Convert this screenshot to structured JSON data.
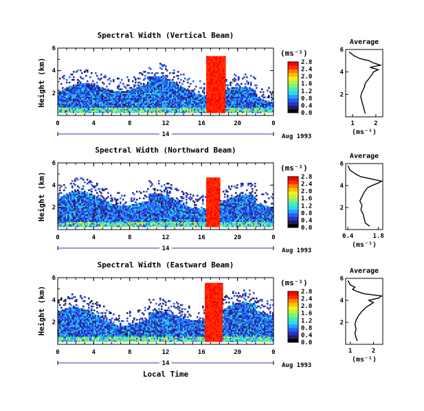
{
  "figure": {
    "x_axis_label": "Local Time",
    "date_label": "Aug 1993",
    "day_label": "14"
  },
  "colorbar_colors": [
    "#000000",
    "#202060",
    "#3030c0",
    "#2060ff",
    "#2aa0ff",
    "#30d8f0",
    "#40f0b0",
    "#80f080",
    "#c0f040",
    "#f0f020",
    "#ffc000",
    "#ff8000",
    "#ff3000",
    "#ff0000"
  ],
  "chart_data": [
    {
      "type": "heatmap",
      "title": "Spectral Width (Vertical Beam)",
      "ylabel": "Height (km)",
      "xlabel": "Local Time",
      "x_ticks": [
        "0",
        "4",
        "8",
        "12",
        "16",
        "20",
        "0"
      ],
      "x_range_hours": [
        0,
        24
      ],
      "y_ticks": [
        "2",
        "4",
        "6"
      ],
      "y_range_km": [
        0,
        6
      ],
      "colorbar": {
        "unit": "(ms⁻¹)",
        "ticks": [
          "0.0",
          "0.4",
          "0.8",
          "1.2",
          "1.6",
          "2.0",
          "2.4",
          "2.8"
        ],
        "range": [
          0,
          2.8
        ]
      },
      "features": [
        {
          "hours": [
            16.5,
            18.5
          ],
          "height_km": [
            0.3,
            5.2
          ],
          "width_ms": 2.8
        },
        {
          "hours": [
            0,
            24
          ],
          "height_km": [
            0.3,
            2.0
          ],
          "width_ms": 0.8
        }
      ],
      "average_profile": {
        "title": "Average",
        "xlabel": "(ms⁻¹)",
        "x_ticks": [
          "1",
          "2"
        ],
        "x_range": [
          0.7,
          2.3
        ],
        "y_ticks": [
          "2",
          "4",
          "6"
        ],
        "heights_km": [
          0.3,
          0.6,
          1.0,
          1.4,
          1.8,
          2.2,
          2.6,
          3.0,
          3.4,
          3.8,
          4.0,
          4.2,
          4.4,
          4.6,
          4.8,
          5.0,
          5.2,
          5.4,
          5.6,
          5.8
        ],
        "values": [
          1.55,
          1.5,
          1.45,
          1.4,
          1.35,
          1.4,
          1.5,
          1.55,
          1.7,
          1.85,
          1.9,
          2.1,
          1.75,
          2.2,
          1.9,
          1.7,
          1.3,
          1.1,
          0.95,
          0.85
        ]
      }
    },
    {
      "type": "heatmap",
      "title": "Spectral Width (Northward Beam)",
      "ylabel": "Height (km)",
      "xlabel": "Local Time",
      "x_ticks": [
        "0",
        "4",
        "8",
        "12",
        "16",
        "20",
        "0"
      ],
      "x_range_hours": [
        0,
        24
      ],
      "y_ticks": [
        "2",
        "4",
        "6"
      ],
      "y_range_km": [
        0,
        6
      ],
      "colorbar": {
        "unit": "(ms⁻¹)",
        "ticks": [
          "0.0",
          "0.4",
          "0.8",
          "1.2",
          "1.6",
          "2.0",
          "2.4",
          "2.8"
        ],
        "range": [
          0,
          2.8
        ]
      },
      "features": [
        {
          "hours": [
            16.5,
            18.0
          ],
          "height_km": [
            0.3,
            4.6
          ],
          "width_ms": 2.8
        },
        {
          "hours": [
            0,
            24
          ],
          "height_km": [
            0.3,
            2.3
          ],
          "width_ms": 0.8
        }
      ],
      "average_profile": {
        "title": "Average",
        "xlabel": "(ms⁻¹)",
        "x_ticks": [
          "0.4",
          "1.8"
        ],
        "x_range": [
          0.3,
          2.0
        ],
        "y_ticks": [
          "2",
          "4",
          "6"
        ],
        "heights_km": [
          0.3,
          0.6,
          1.0,
          1.4,
          1.8,
          2.2,
          2.6,
          3.0,
          3.4,
          3.8,
          4.0,
          4.2,
          4.4,
          4.6,
          4.8,
          5.0,
          5.2,
          5.4,
          5.6,
          5.8
        ],
        "values": [
          1.4,
          1.2,
          1.15,
          1.1,
          1.0,
          1.05,
          0.95,
          1.05,
          1.15,
          1.3,
          1.5,
          1.75,
          1.95,
          1.5,
          1.0,
          0.8,
          0.65,
          0.5,
          0.45,
          0.4
        ]
      }
    },
    {
      "type": "heatmap",
      "title": "Spectral Width (Eastward Beam)",
      "ylabel": "Height (km)",
      "xlabel": "Local Time",
      "x_ticks": [
        "0",
        "4",
        "8",
        "12",
        "16",
        "20",
        "0"
      ],
      "x_range_hours": [
        0,
        24
      ],
      "y_ticks": [
        "2",
        "4",
        "6"
      ],
      "y_range_km": [
        0,
        6
      ],
      "colorbar": {
        "unit": "(ms⁻¹)",
        "ticks": [
          "0.0",
          "0.4",
          "0.8",
          "1.2",
          "1.6",
          "2.0",
          "2.4",
          "2.8"
        ],
        "range": [
          0,
          2.8
        ]
      },
      "features": [
        {
          "hours": [
            16.3,
            18.3
          ],
          "height_km": [
            0.3,
            5.5
          ],
          "width_ms": 2.8
        },
        {
          "hours": [
            0,
            24
          ],
          "height_km": [
            0.3,
            2.4
          ],
          "width_ms": 0.8
        }
      ],
      "average_profile": {
        "title": "Average",
        "xlabel": "(ms⁻¹)",
        "x_ticks": [
          "1",
          "2"
        ],
        "x_range": [
          0.8,
          2.4
        ],
        "y_ticks": [
          "2",
          "4",
          "6"
        ],
        "heights_km": [
          0.3,
          0.6,
          1.0,
          1.4,
          1.8,
          2.2,
          2.6,
          3.0,
          3.4,
          3.8,
          4.0,
          4.2,
          4.4,
          4.6,
          4.8,
          5.0,
          5.2,
          5.4,
          5.6,
          5.8
        ],
        "values": [
          1.3,
          1.25,
          1.2,
          1.25,
          1.2,
          1.25,
          1.35,
          1.5,
          1.7,
          2.0,
          1.8,
          2.2,
          2.35,
          1.6,
          1.3,
          1.1,
          1.2,
          1.0,
          0.95,
          0.9
        ]
      }
    }
  ]
}
